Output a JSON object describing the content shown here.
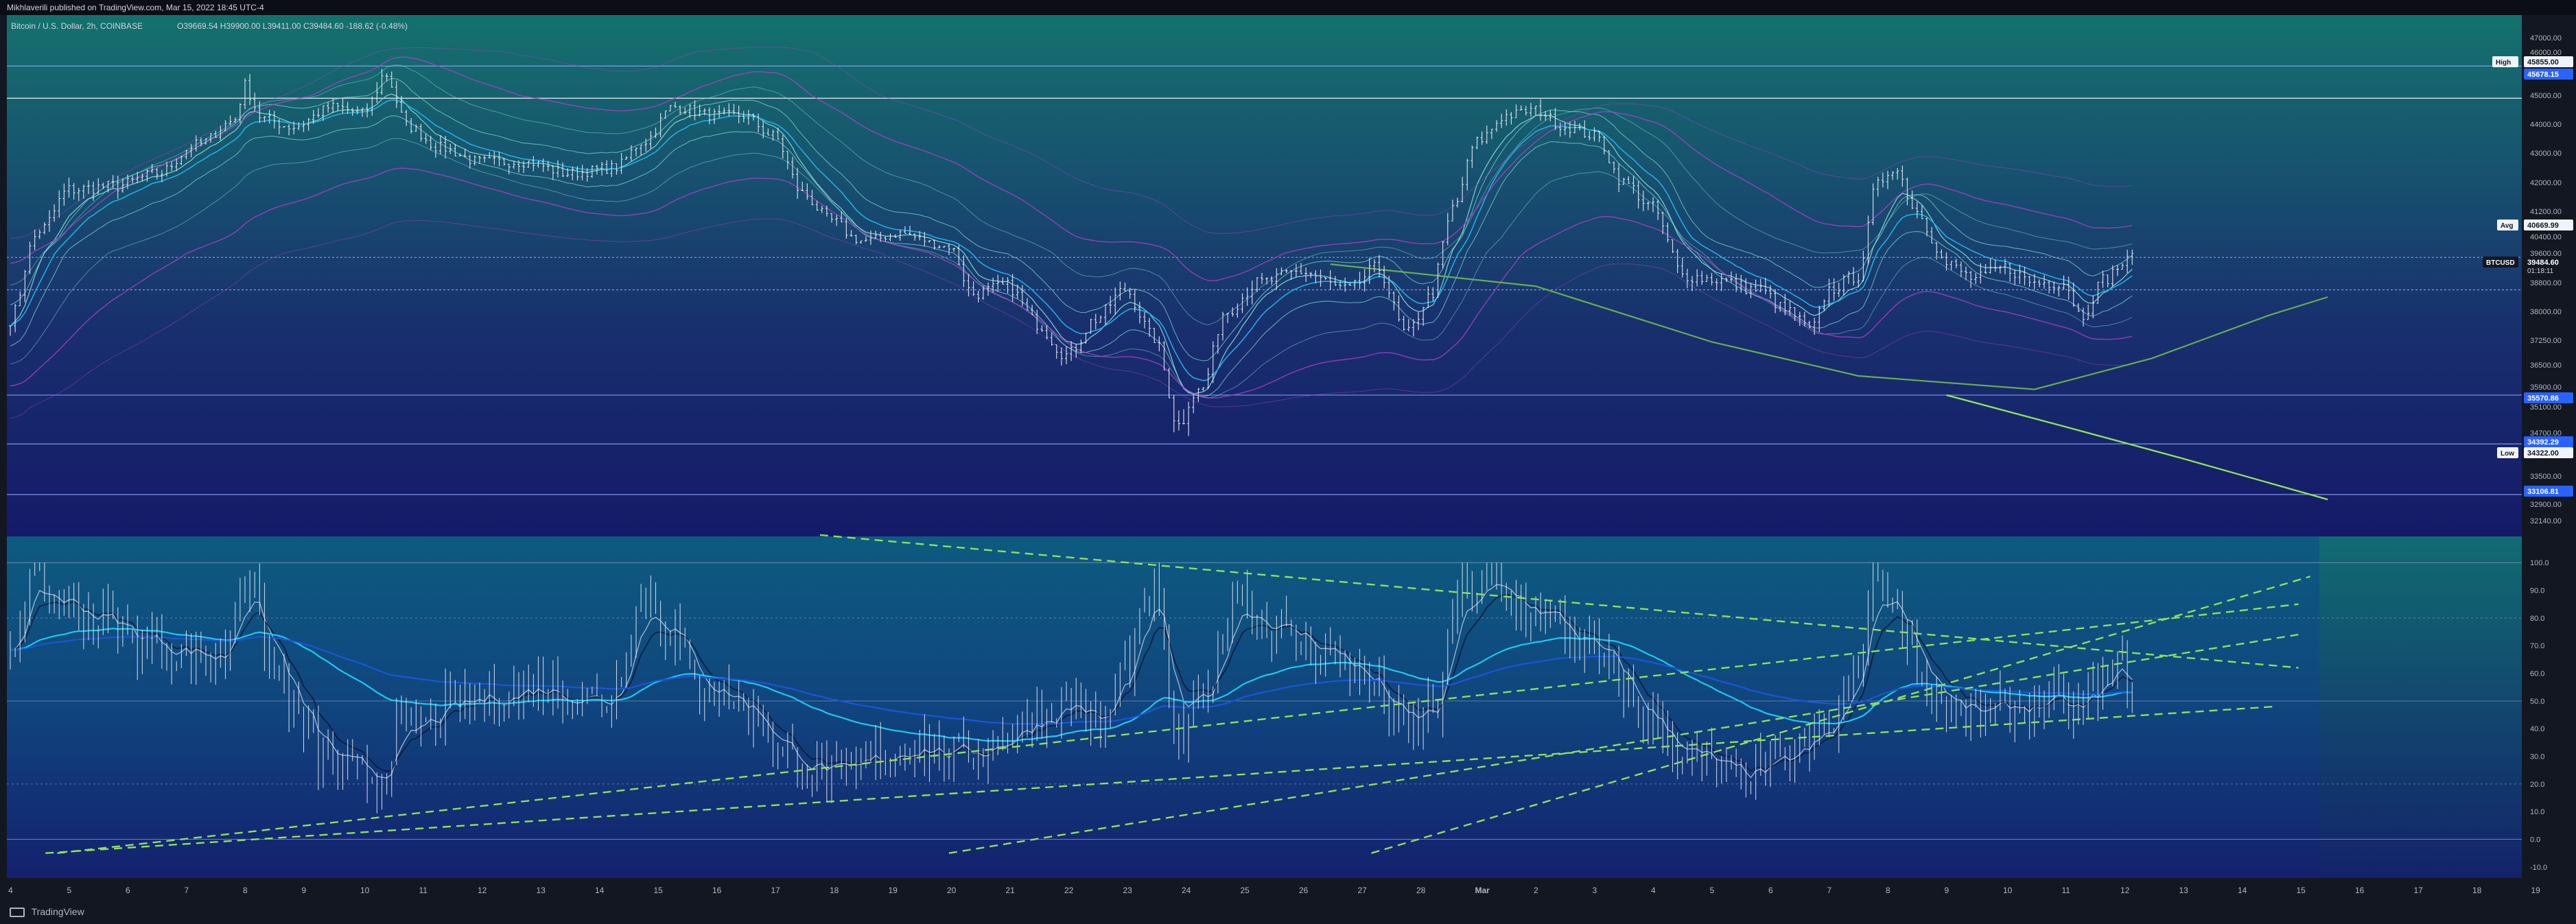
{
  "header": {
    "publisher": "Mikhlaverili published on TradingView.com, Mar 15, 2022 18:45 UTC-4",
    "symbol": "Bitcoin / U.S. Dollar, 2h, COINBASE",
    "ohlc": "O39669.54 H39900.00 L39411.00 C39484.60 -188.62 (-0.48%)"
  },
  "footer": {
    "brand": "TradingView"
  },
  "colors": {
    "background_top": "#14706e",
    "background_bottom": "#151a6b",
    "candles": "#e6e8f0",
    "ribbon_light": "#7fd8d2",
    "ribbon_cyan": "#22b3e6",
    "ribbon_magenta": "#b040c8",
    "long_ma": "#6dbb4d",
    "oscillator_cyan": "#1ec8ee",
    "oscillator_blue": "#1a55d8",
    "trendline_green": "#8ee05a",
    "level_blue": "#2962ff",
    "label_white": "#ffffff"
  },
  "chart_data": [
    {
      "type": "candlestick",
      "title": "Bitcoin / U.S. Dollar, 2h, COINBASE",
      "interval": "2h",
      "x_ticks": [
        "4",
        "5",
        "6",
        "7",
        "8",
        "9",
        "10",
        "11",
        "12",
        "13",
        "14",
        "15",
        "16",
        "17",
        "18",
        "19",
        "20",
        "21",
        "22",
        "23",
        "24",
        "25",
        "26",
        "27",
        "28",
        "Mar",
        "2",
        "3",
        "4",
        "5",
        "6",
        "7",
        "8",
        "9",
        "10",
        "11",
        "12",
        "13",
        "14",
        "15",
        "16",
        "17",
        "18",
        "19"
      ],
      "ylim": [
        32140,
        47000
      ],
      "y_ticks": [
        47000,
        46000,
        45000,
        44000,
        43000,
        42000,
        41200,
        40400,
        39600,
        38800,
        38000,
        37250,
        36500,
        35900,
        35100,
        34700,
        33500,
        32900,
        32140
      ],
      "price_labels": [
        {
          "label": "High",
          "value": "45855.00"
        },
        {
          "label": "",
          "value": "45678.15"
        },
        {
          "label": "Avg",
          "value": "40669.99"
        },
        {
          "label": "BTCUSD",
          "value": "39484.60",
          "sub": "01:18:11"
        },
        {
          "label": "",
          "value": "35570.86"
        },
        {
          "label": "",
          "value": "34392.29"
        },
        {
          "label": "Low",
          "value": "34322.00"
        },
        {
          "label": "",
          "value": "33106.81"
        }
      ],
      "horizontal_levels": [
        45678.15,
        44900,
        39484.6,
        38600,
        35570.86,
        34392.29,
        33106.81
      ],
      "price_path": [
        {
          "x": 4.0,
          "y": 37800
        },
        {
          "x": 4.5,
          "y": 40600
        },
        {
          "x": 5.0,
          "y": 41800
        },
        {
          "x": 5.8,
          "y": 41900
        },
        {
          "x": 6.5,
          "y": 42300
        },
        {
          "x": 7.2,
          "y": 43300
        },
        {
          "x": 7.8,
          "y": 44100
        },
        {
          "x": 8.0,
          "y": 45200
        },
        {
          "x": 8.3,
          "y": 44200
        },
        {
          "x": 8.8,
          "y": 43900
        },
        {
          "x": 9.5,
          "y": 44600
        },
        {
          "x": 10.0,
          "y": 44400
        },
        {
          "x": 10.4,
          "y": 45500
        },
        {
          "x": 10.8,
          "y": 43900
        },
        {
          "x": 11.3,
          "y": 43200
        },
        {
          "x": 12.0,
          "y": 42700
        },
        {
          "x": 12.8,
          "y": 42700
        },
        {
          "x": 13.5,
          "y": 42300
        },
        {
          "x": 14.3,
          "y": 42500
        },
        {
          "x": 14.8,
          "y": 43400
        },
        {
          "x": 15.3,
          "y": 44600
        },
        {
          "x": 16.0,
          "y": 44300
        },
        {
          "x": 16.5,
          "y": 44300
        },
        {
          "x": 17.0,
          "y": 43600
        },
        {
          "x": 17.5,
          "y": 41700
        },
        {
          "x": 18.0,
          "y": 40900
        },
        {
          "x": 18.5,
          "y": 40200
        },
        {
          "x": 19.2,
          "y": 40500
        },
        {
          "x": 20.0,
          "y": 39900
        },
        {
          "x": 20.4,
          "y": 38500
        },
        {
          "x": 21.0,
          "y": 38700
        },
        {
          "x": 21.5,
          "y": 37700
        },
        {
          "x": 22.0,
          "y": 36800
        },
        {
          "x": 22.5,
          "y": 37800
        },
        {
          "x": 23.0,
          "y": 38600
        },
        {
          "x": 23.5,
          "y": 37300
        },
        {
          "x": 23.9,
          "y": 34800
        },
        {
          "x": 24.3,
          "y": 35800
        },
        {
          "x": 24.7,
          "y": 38000
        },
        {
          "x": 25.3,
          "y": 38800
        },
        {
          "x": 26.0,
          "y": 39100
        },
        {
          "x": 26.8,
          "y": 38600
        },
        {
          "x": 27.3,
          "y": 39200
        },
        {
          "x": 27.8,
          "y": 37400
        },
        {
          "x": 28.2,
          "y": 38400
        },
        {
          "x": 28.6,
          "y": 41300
        },
        {
          "x": 29.0,
          "y": 43400
        },
        {
          "x": 29.5,
          "y": 44300
        },
        {
          "x": 30.0,
          "y": 44500
        },
        {
          "x": 30.5,
          "y": 43900
        },
        {
          "x": 31.0,
          "y": 43600
        },
        {
          "x": 31.5,
          "y": 42000
        },
        {
          "x": 32.0,
          "y": 41300
        },
        {
          "x": 32.5,
          "y": 39000
        },
        {
          "x": 33.0,
          "y": 38900
        },
        {
          "x": 33.8,
          "y": 38600
        },
        {
          "x": 34.3,
          "y": 38000
        },
        {
          "x": 34.7,
          "y": 37500
        },
        {
          "x": 35.0,
          "y": 38600
        },
        {
          "x": 35.5,
          "y": 39000
        },
        {
          "x": 35.8,
          "y": 41900
        },
        {
          "x": 36.1,
          "y": 42500
        },
        {
          "x": 36.5,
          "y": 41200
        },
        {
          "x": 37.0,
          "y": 39300
        },
        {
          "x": 37.5,
          "y": 38900
        },
        {
          "x": 38.0,
          "y": 39200
        },
        {
          "x": 38.5,
          "y": 38800
        },
        {
          "x": 39.0,
          "y": 38800
        },
        {
          "x": 39.3,
          "y": 37900
        },
        {
          "x": 39.7,
          "y": 38900
        },
        {
          "x": 40.0,
          "y": 39300
        },
        {
          "x": 40.2,
          "y": 39500
        }
      ]
    },
    {
      "type": "line",
      "title": "",
      "ylim": [
        -14,
        107
      ],
      "y_ticks": [
        100.0,
        90.0,
        80.0,
        70.0,
        60.0,
        50.0,
        40.0,
        30.0,
        20.0,
        10.0,
        0.0,
        -10.0
      ],
      "zones": [
        80,
        20
      ],
      "series": [
        {
          "values_x": [
            4.0,
            4.4,
            4.8,
            5.5,
            6.2,
            7.0,
            7.6,
            8.0,
            8.5,
            9.0,
            9.3,
            9.8,
            10.3,
            10.6,
            11.0,
            11.5,
            12.3,
            13.0,
            13.6,
            14.2,
            14.8,
            15.3,
            15.7,
            16.2,
            16.7,
            17.2,
            17.8,
            18.2,
            18.8,
            19.5,
            20.0,
            20.5,
            21.0,
            21.6,
            22.1,
            22.6,
            23.0,
            23.5,
            23.9,
            24.4,
            24.9,
            25.4,
            26.0,
            26.7,
            27.2,
            27.8,
            28.3,
            28.7,
            29.2,
            29.7,
            30.2,
            30.8,
            31.3,
            31.8,
            32.3,
            32.8,
            33.4,
            34.0,
            34.5,
            35.0,
            35.4,
            35.8,
            36.2,
            36.7,
            37.2,
            37.7,
            38.2,
            38.7,
            39.2,
            39.6,
            40.0,
            40.2
          ],
          "values_y": [
            70,
            95,
            86,
            80,
            72,
            68,
            65,
            95,
            62,
            40,
            30,
            24,
            22,
            38,
            42,
            48,
            52,
            55,
            52,
            50,
            88,
            75,
            55,
            52,
            45,
            30,
            25,
            22,
            30,
            35,
            30,
            32,
            38,
            45,
            50,
            40,
            62,
            90,
            35,
            55,
            90,
            78,
            72,
            65,
            55,
            40,
            48,
            90,
            92,
            85,
            80,
            70,
            62,
            45,
            35,
            28,
            22,
            25,
            32,
            40,
            55,
            98,
            82,
            55,
            45,
            45,
            48,
            50,
            45,
            55,
            62,
            58
          ]
        }
      ]
    }
  ]
}
